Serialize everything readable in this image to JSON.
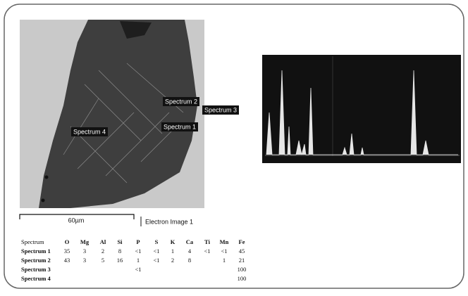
{
  "image": {
    "spectrum_labels": [
      "Spectrum 1",
      "Spectrum 2",
      "Spectrum 3",
      "Spectrum 4"
    ],
    "scale_bar": "60µm",
    "caption": "Electron Image 1"
  },
  "table": {
    "header": [
      "Spectrum",
      "O",
      "Mg",
      "Al",
      "Si",
      "P",
      "S",
      "K",
      "Ca",
      "Ti",
      "Mn",
      "Fe"
    ],
    "rows": [
      [
        "Spectrum 1",
        "35",
        "3",
        "2",
        "8",
        "<1",
        "<1",
        "1",
        "4",
        "<1",
        "<1",
        "45"
      ],
      [
        "Spectrum 2",
        "43",
        "3",
        "5",
        "16",
        "1",
        "<1",
        "2",
        "8",
        null,
        "1",
        "21"
      ],
      [
        "Spectrum 3",
        null,
        null,
        null,
        null,
        "<1",
        null,
        null,
        null,
        null,
        null,
        "100"
      ],
      [
        "Spectrum 4",
        null,
        null,
        null,
        null,
        null,
        null,
        null,
        null,
        null,
        null,
        "100"
      ]
    ]
  }
}
